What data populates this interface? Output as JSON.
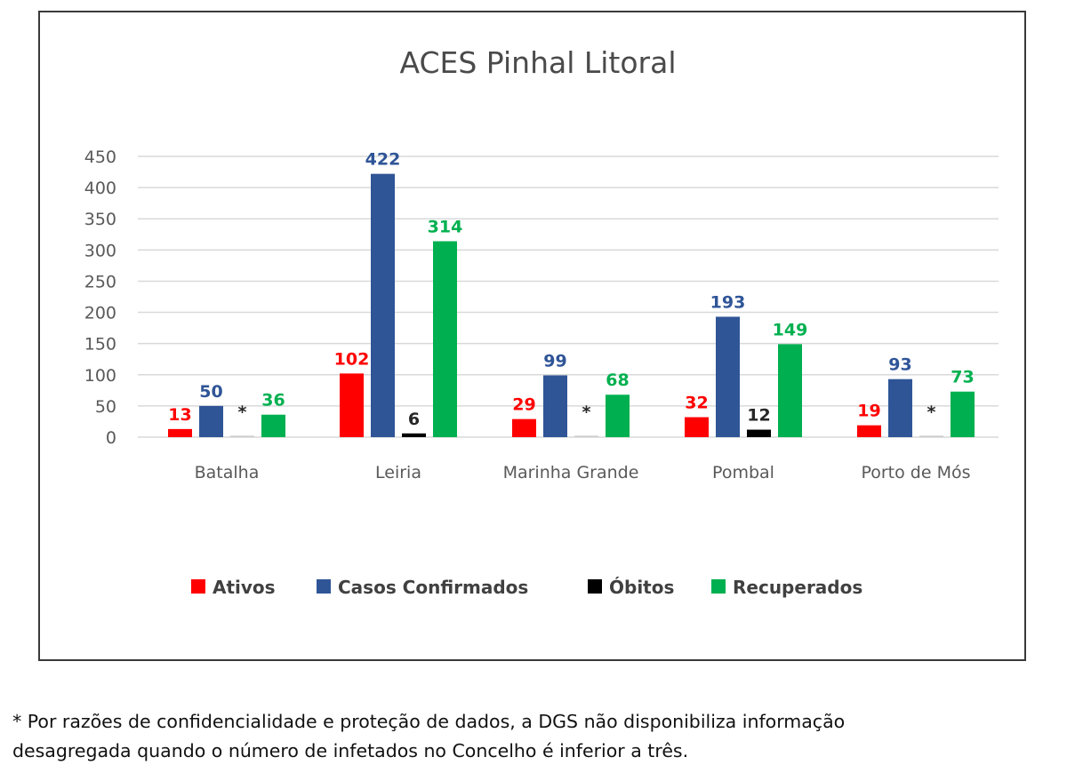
{
  "chart_data": {
    "type": "bar",
    "title": "ACES Pinhal Litoral",
    "categories": [
      "Batalha",
      "Leiria",
      "Marinha Grande",
      "Pombal",
      "Porto de Mós"
    ],
    "series": [
      {
        "name": "Ativos",
        "color": "#ff0000",
        "values": [
          13,
          102,
          29,
          32,
          19
        ],
        "labels": [
          "13",
          "102",
          "29",
          "32",
          "19"
        ]
      },
      {
        "name": "Casos Confirmados",
        "color": "#2f5597",
        "values": [
          50,
          422,
          99,
          193,
          93
        ],
        "labels": [
          "50",
          "422",
          "99",
          "193",
          "93"
        ]
      },
      {
        "name": "Óbitos",
        "color": "#000000",
        "values": [
          null,
          6,
          null,
          12,
          null
        ],
        "labels": [
          "*",
          "6",
          "*",
          "12",
          "*"
        ]
      },
      {
        "name": "Recuperados",
        "color": "#00b050",
        "values": [
          36,
          314,
          68,
          149,
          73
        ],
        "labels": [
          "36",
          "314",
          "68",
          "149",
          "73"
        ]
      }
    ],
    "yticks": [
      "0",
      "50",
      "100",
      "150",
      "200",
      "250",
      "300",
      "350",
      "400",
      "450"
    ],
    "ylim": [
      0,
      450
    ],
    "grid": true,
    "legend_position": "bottom"
  },
  "footnote": {
    "line1": "* Por razões de confidencialidade e proteção de dados, a DGS não disponibiliza informação",
    "line2": "desagregada quando o número de infetados no Concelho é inferior a três."
  }
}
